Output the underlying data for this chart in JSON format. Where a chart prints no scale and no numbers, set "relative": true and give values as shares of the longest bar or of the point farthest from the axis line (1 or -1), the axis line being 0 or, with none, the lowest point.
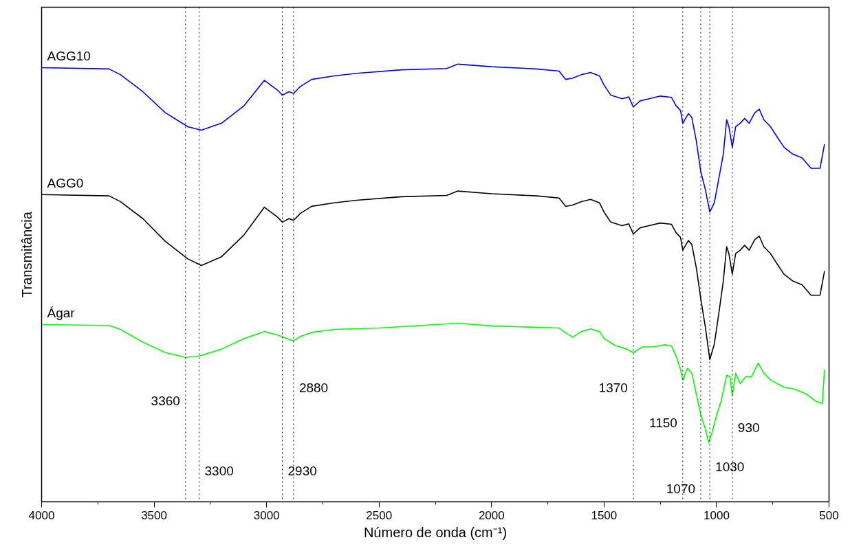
{
  "chart_data": {
    "type": "line",
    "relative": true,
    "xlabel": "Número de onda (cm⁻¹)",
    "ylabel": "Transmitância",
    "xlim": [
      4000,
      500
    ],
    "xticks": [
      4000,
      3500,
      3000,
      2500,
      2000,
      1500,
      1000,
      500
    ],
    "grid": false,
    "tick_labels": "x",
    "line_style": "solid",
    "marker": "none",
    "series": [
      {
        "name": "AGG10",
        "color": "#0000ff",
        "x": [
          4000,
          3700,
          3650,
          3550,
          3450,
          3350,
          3290,
          3200,
          3100,
          3010,
          2950,
          2930,
          2900,
          2880,
          2850,
          2800,
          2700,
          2600,
          2400,
          2200,
          2150,
          2000,
          1800,
          1700,
          1670,
          1640,
          1600,
          1560,
          1520,
          1500,
          1470,
          1420,
          1390,
          1370,
          1340,
          1300,
          1250,
          1200,
          1180,
          1160,
          1150,
          1125,
          1110,
          1090,
          1070,
          1050,
          1030,
          1010,
          990,
          970,
          955,
          945,
          930,
          915,
          895,
          875,
          855,
          830,
          810,
          790,
          760,
          730,
          700,
          660,
          620,
          580,
          540,
          520
        ],
        "values": [
          0.992,
          0.989,
          0.976,
          0.937,
          0.889,
          0.857,
          0.849,
          0.865,
          0.905,
          0.963,
          0.94,
          0.929,
          0.937,
          0.933,
          0.949,
          0.965,
          0.973,
          0.979,
          0.987,
          0.99,
          1.0,
          0.994,
          0.989,
          0.984,
          0.965,
          0.968,
          0.976,
          0.981,
          0.973,
          0.952,
          0.929,
          0.921,
          0.925,
          0.902,
          0.916,
          0.921,
          0.927,
          0.924,
          0.905,
          0.894,
          0.865,
          0.887,
          0.878,
          0.825,
          0.754,
          0.714,
          0.662,
          0.683,
          0.738,
          0.794,
          0.873,
          0.857,
          0.81,
          0.857,
          0.865,
          0.876,
          0.865,
          0.889,
          0.897,
          0.873,
          0.857,
          0.833,
          0.81,
          0.794,
          0.786,
          0.762,
          0.762,
          0.817
        ]
      },
      {
        "name": "AGG0",
        "color": "#000000",
        "x": [
          4000,
          3700,
          3650,
          3550,
          3450,
          3350,
          3290,
          3200,
          3100,
          3010,
          2950,
          2930,
          2900,
          2880,
          2850,
          2800,
          2700,
          2600,
          2400,
          2200,
          2150,
          2000,
          1800,
          1700,
          1670,
          1640,
          1600,
          1560,
          1520,
          1500,
          1470,
          1420,
          1390,
          1370,
          1340,
          1300,
          1250,
          1200,
          1180,
          1160,
          1150,
          1125,
          1110,
          1090,
          1070,
          1050,
          1030,
          1010,
          990,
          970,
          955,
          945,
          930,
          915,
          895,
          875,
          855,
          830,
          810,
          790,
          760,
          730,
          700,
          660,
          620,
          580,
          540,
          520
        ],
        "values": [
          0.702,
          0.699,
          0.686,
          0.647,
          0.595,
          0.555,
          0.54,
          0.56,
          0.61,
          0.673,
          0.65,
          0.639,
          0.647,
          0.643,
          0.659,
          0.675,
          0.683,
          0.689,
          0.697,
          0.7,
          0.71,
          0.704,
          0.699,
          0.694,
          0.675,
          0.678,
          0.686,
          0.691,
          0.683,
          0.662,
          0.639,
          0.631,
          0.635,
          0.612,
          0.626,
          0.631,
          0.637,
          0.634,
          0.615,
          0.604,
          0.575,
          0.597,
          0.588,
          0.535,
          0.464,
          0.4,
          0.325,
          0.36,
          0.43,
          0.504,
          0.583,
          0.567,
          0.52,
          0.567,
          0.575,
          0.586,
          0.575,
          0.599,
          0.607,
          0.583,
          0.567,
          0.543,
          0.52,
          0.504,
          0.496,
          0.472,
          0.472,
          0.527
        ]
      },
      {
        "name": "Ágar",
        "color": "#00ff00",
        "x": [
          4000,
          3700,
          3650,
          3550,
          3450,
          3360,
          3300,
          3200,
          3100,
          3010,
          2950,
          2900,
          2880,
          2850,
          2800,
          2700,
          2500,
          2150,
          2000,
          1700,
          1670,
          1640,
          1600,
          1560,
          1520,
          1500,
          1450,
          1400,
          1370,
          1330,
          1280,
          1230,
          1200,
          1180,
          1160,
          1150,
          1130,
          1110,
          1090,
          1070,
          1050,
          1035,
          1020,
          1000,
          980,
          955,
          940,
          930,
          915,
          895,
          870,
          845,
          815,
          790,
          760,
          730,
          700,
          650,
          600,
          560,
          530,
          520
        ],
        "values": [
          0.405,
          0.403,
          0.394,
          0.365,
          0.341,
          0.33,
          0.333,
          0.349,
          0.373,
          0.389,
          0.381,
          0.371,
          0.368,
          0.378,
          0.387,
          0.394,
          0.397,
          0.408,
          0.402,
          0.397,
          0.386,
          0.376,
          0.389,
          0.395,
          0.389,
          0.373,
          0.357,
          0.349,
          0.341,
          0.354,
          0.354,
          0.359,
          0.356,
          0.333,
          0.302,
          0.278,
          0.305,
          0.294,
          0.246,
          0.198,
          0.167,
          0.135,
          0.159,
          0.198,
          0.23,
          0.289,
          0.286,
          0.243,
          0.294,
          0.27,
          0.286,
          0.286,
          0.317,
          0.294,
          0.278,
          0.27,
          0.262,
          0.257,
          0.246,
          0.23,
          0.225,
          0.302
        ]
      }
    ],
    "ref_lines": [
      {
        "axis": "x",
        "value": 3360,
        "label": "3360",
        "color": "#000000",
        "line_style": "dotted"
      },
      {
        "axis": "x",
        "value": 3300,
        "label": "3300",
        "color": "#000000",
        "line_style": "dotted"
      },
      {
        "axis": "x",
        "value": 2930,
        "label": "2930",
        "color": "#000000",
        "line_style": "dotted"
      },
      {
        "axis": "x",
        "value": 2880,
        "label": "2880",
        "color": "#000000",
        "line_style": "dotted"
      },
      {
        "axis": "x",
        "value": 1370,
        "label": "1370",
        "color": "#000000",
        "line_style": "dotted"
      },
      {
        "axis": "x",
        "value": 1150,
        "label": "1150",
        "color": "#000000",
        "line_style": "dotted"
      },
      {
        "axis": "x",
        "value": 1070,
        "label": "1070",
        "color": "#000000",
        "line_style": "dotted"
      },
      {
        "axis": "x",
        "value": 1030,
        "label": "1030",
        "color": "#000000",
        "line_style": "dotted"
      },
      {
        "axis": "x",
        "value": 930,
        "label": "930",
        "color": "#000000",
        "line_style": "dotted"
      }
    ]
  }
}
